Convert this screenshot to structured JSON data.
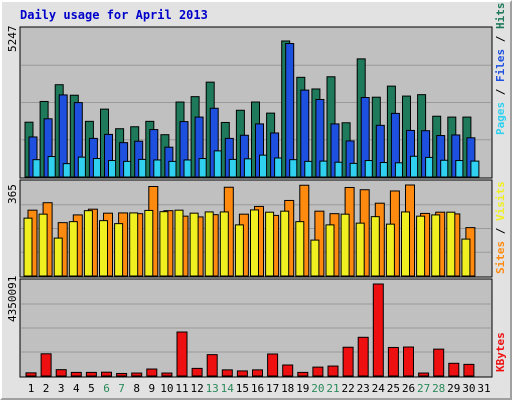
{
  "title": "Daily usage for April 2013",
  "colors": {
    "hits": "#1e7a5a",
    "files": "#1e50e0",
    "pages": "#30d0f0",
    "visits": "#f0f020",
    "sites": "#ff8a10",
    "kbytes": "#ee1010",
    "weekend_label": "#2a8a5a",
    "weekday_label": "#000000",
    "panel_bg": "#c0c0c0",
    "title": "#0000cc"
  },
  "chart_data": [
    {
      "type": "bar",
      "panel": "hits-files-pages",
      "ymax_label": "5247",
      "ylim": [
        0,
        5247
      ],
      "categories": [
        "1",
        "2",
        "3",
        "4",
        "5",
        "6",
        "7",
        "8",
        "9",
        "10",
        "11",
        "12",
        "13",
        "14",
        "15",
        "16",
        "17",
        "18",
        "19",
        "20",
        "21",
        "22",
        "23",
        "24",
        "25",
        "26",
        "27",
        "28",
        "29",
        "30",
        "31"
      ],
      "series": [
        {
          "name": "Hits",
          "values": [
            1930,
            2660,
            3250,
            2880,
            1960,
            2390,
            1700,
            1770,
            1960,
            1490,
            2640,
            2830,
            3340,
            1920,
            2350,
            2640,
            2250,
            4790,
            3510,
            3100,
            3530,
            1910,
            4160,
            2810,
            3200,
            2850,
            2900,
            2140,
            2110,
            2110,
            0
          ]
        },
        {
          "name": "Files",
          "values": [
            1410,
            2050,
            2890,
            2620,
            1360,
            1500,
            1210,
            1260,
            1670,
            1050,
            1950,
            2110,
            2420,
            1360,
            1470,
            1870,
            1550,
            4700,
            3060,
            2730,
            1870,
            1270,
            2800,
            1820,
            2240,
            1640,
            1630,
            1460,
            1480,
            1380,
            0
          ]
        },
        {
          "name": "Pages",
          "values": [
            610,
            720,
            470,
            700,
            650,
            580,
            550,
            620,
            600,
            550,
            600,
            650,
            920,
            620,
            640,
            770,
            670,
            610,
            550,
            560,
            520,
            480,
            580,
            510,
            500,
            730,
            690,
            590,
            580,
            560,
            0
          ]
        }
      ],
      "legend": [
        "Pages",
        "Files",
        "Hits"
      ]
    },
    {
      "type": "bar",
      "panel": "visits-sites",
      "ymax_label": "365",
      "ylim": [
        0,
        365
      ],
      "categories": [
        "1",
        "2",
        "3",
        "4",
        "5",
        "6",
        "7",
        "8",
        "9",
        "10",
        "11",
        "12",
        "13",
        "14",
        "15",
        "16",
        "17",
        "18",
        "19",
        "20",
        "21",
        "22",
        "23",
        "24",
        "25",
        "26",
        "27",
        "28",
        "29",
        "30",
        "31"
      ],
      "series": [
        {
          "name": "Visits",
          "values": [
            232,
            248,
            152,
            218,
            262,
            222,
            210,
            253,
            263,
            258,
            264,
            252,
            257,
            257,
            205,
            265,
            256,
            260,
            218,
            144,
            205,
            248,
            212,
            238,
            208,
            257,
            240,
            245,
            256,
            148,
            0
          ]
        },
        {
          "name": "Sites",
          "values": [
            264,
            294,
            214,
            245,
            268,
            252,
            253,
            250,
            359,
            262,
            240,
            237,
            246,
            356,
            248,
            279,
            243,
            303,
            364,
            260,
            250,
            355,
            346,
            292,
            341,
            365,
            251,
            256,
            249,
            194,
            0
          ]
        }
      ],
      "legend": [
        "Sites",
        "Visits"
      ]
    },
    {
      "type": "bar",
      "panel": "kbytes",
      "ymax_label": "4350091",
      "ylim": [
        0,
        4350091
      ],
      "categories": [
        "1",
        "2",
        "3",
        "4",
        "5",
        "6",
        "7",
        "8",
        "9",
        "10",
        "11",
        "12",
        "13",
        "14",
        "15",
        "16",
        "17",
        "18",
        "19",
        "20",
        "21",
        "22",
        "23",
        "24",
        "25",
        "26",
        "27",
        "28",
        "29",
        "30",
        "31"
      ],
      "series": [
        {
          "name": "KBytes",
          "values": [
            150000,
            1050000,
            300000,
            170000,
            170000,
            180000,
            120000,
            140000,
            330000,
            140000,
            2080000,
            360000,
            1010000,
            290000,
            240000,
            290000,
            1040000,
            520000,
            170000,
            420000,
            470000,
            1360000,
            1830000,
            4350091,
            1350000,
            1370000,
            140000,
            1270000,
            600000,
            550000,
            0
          ]
        }
      ],
      "legend": [
        "KBytes"
      ]
    }
  ],
  "x_labels": [
    "1",
    "2",
    "3",
    "4",
    "5",
    "6",
    "7",
    "8",
    "9",
    "10",
    "11",
    "12",
    "13",
    "14",
    "15",
    "16",
    "17",
    "18",
    "19",
    "20",
    "21",
    "22",
    "23",
    "24",
    "25",
    "26",
    "27",
    "28",
    "29",
    "30",
    "31"
  ],
  "weekend_days": [
    6,
    7,
    13,
    14,
    20,
    21,
    27,
    28
  ],
  "legend_text": {
    "pages": "Pages",
    "files": "Files",
    "hits": "Hits",
    "sites": "Sites",
    "visits": "Visits",
    "kbytes": "KBytes",
    "sep": " / "
  }
}
